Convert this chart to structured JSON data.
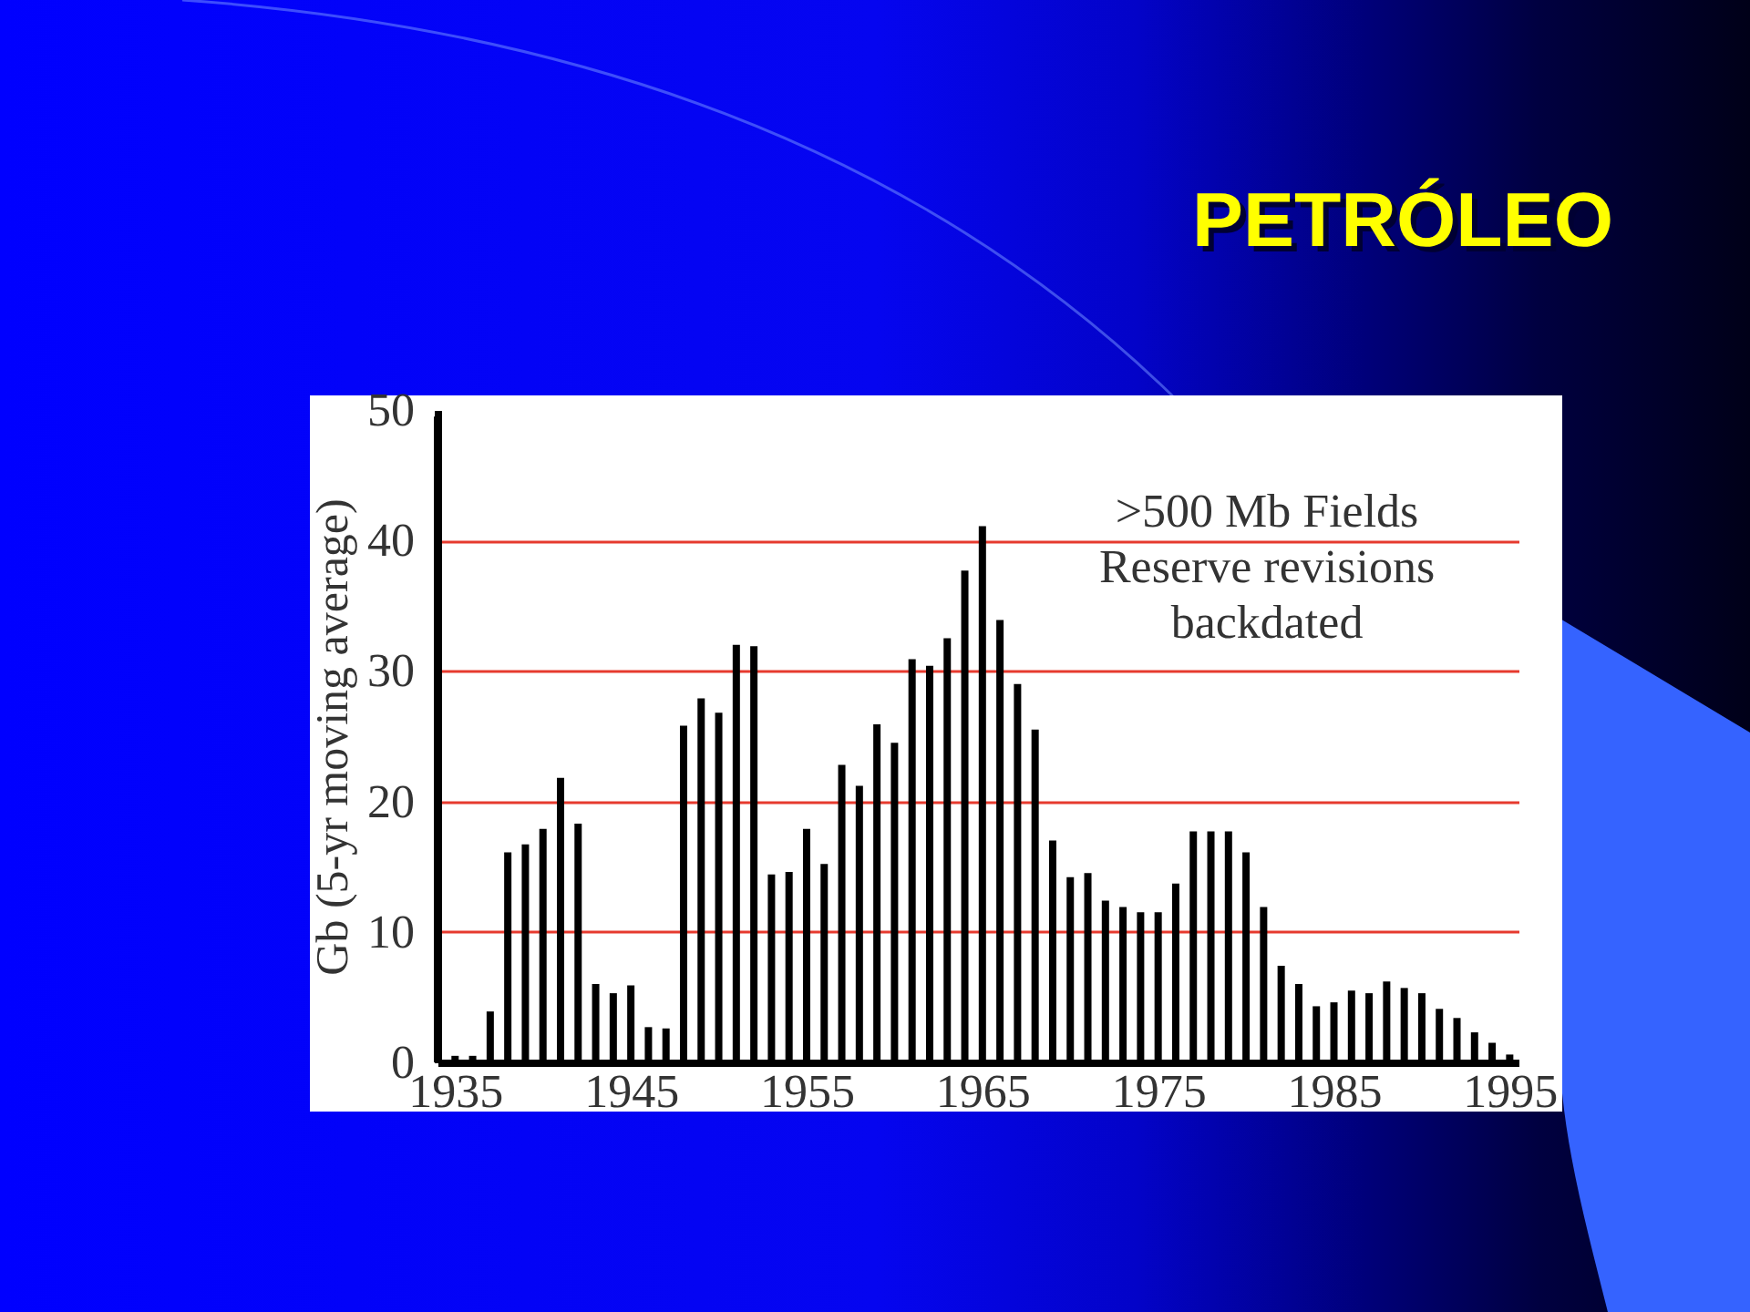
{
  "chart_data": {
    "type": "bar",
    "title": "PETRÓLEO",
    "ylabel": "Gb (5-yr moving average)",
    "x": [
      1934,
      1935,
      1936,
      1937,
      1938,
      1939,
      1940,
      1941,
      1942,
      1943,
      1944,
      1945,
      1946,
      1947,
      1948,
      1949,
      1950,
      1951,
      1952,
      1953,
      1954,
      1955,
      1956,
      1957,
      1958,
      1959,
      1960,
      1961,
      1962,
      1963,
      1964,
      1965,
      1966,
      1967,
      1968,
      1969,
      1970,
      1971,
      1972,
      1973,
      1974,
      1975,
      1976,
      1977,
      1978,
      1979,
      1980,
      1981,
      1982,
      1983,
      1984,
      1985,
      1986,
      1987,
      1988,
      1989,
      1990,
      1991,
      1992,
      1993,
      1994,
      1995
    ],
    "values": [
      49.5,
      0.5,
      0.5,
      3.9,
      16.1,
      16.7,
      17.9,
      21.8,
      18.3,
      6.0,
      5.3,
      5.9,
      2.7,
      2.6,
      25.8,
      27.9,
      26.8,
      32.0,
      31.9,
      14.4,
      14.6,
      17.9,
      15.2,
      22.8,
      21.2,
      25.9,
      24.5,
      30.9,
      30.4,
      32.5,
      37.7,
      41.1,
      33.9,
      29.0,
      25.5,
      17.0,
      14.2,
      14.5,
      12.4,
      11.9,
      11.5,
      11.5,
      13.7,
      17.7,
      17.7,
      17.7,
      16.1,
      11.9,
      7.4,
      6.0,
      4.3,
      4.6,
      5.5,
      5.3,
      6.2,
      5.7,
      5.3,
      4.1,
      3.4,
      2.3,
      1.5,
      0.6
    ],
    "color": "#000000",
    "xlim": [
      1934,
      1995.5
    ],
    "xticks": [
      1935,
      1945,
      1955,
      1965,
      1975,
      1985,
      1995
    ],
    "ylim": [
      0,
      50
    ],
    "yticks": [
      0,
      10,
      20,
      30,
      40,
      50
    ],
    "grid": "y",
    "annotations": [
      ">500 Mb Fields",
      "Reserve revisions",
      "backdated"
    ]
  }
}
